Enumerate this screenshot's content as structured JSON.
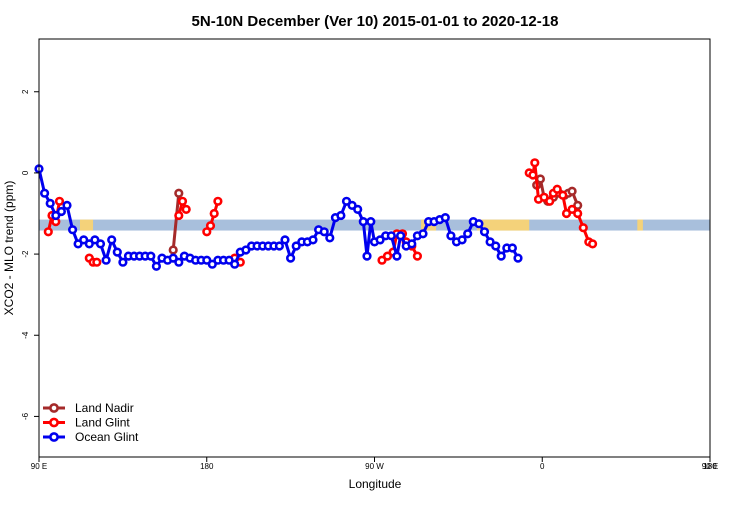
{
  "chart_data": {
    "type": "line",
    "title": "5N-10N December (Ver 10)   2015-01-01 to 2020-12-18",
    "xlabel": "Longitude",
    "ylabel": "XCO2 - MLO trend (ppm)",
    "xlim": [
      90,
      450
    ],
    "ylim": [
      -7,
      3.3
    ],
    "x_ticks": [
      {
        "value": 90,
        "label": "90 E"
      },
      {
        "value": 180,
        "label": "180"
      },
      {
        "value": 270,
        "label": "90 W"
      },
      {
        "value": 360,
        "label": "0"
      },
      {
        "value": 450,
        "label": "90 E"
      },
      {
        "value": 540,
        "label": "180"
      }
    ],
    "y_ticks": [
      {
        "value": 2,
        "label": "2"
      },
      {
        "value": 0,
        "label": "0"
      },
      {
        "value": -2,
        "label": "-2"
      },
      {
        "value": -4,
        "label": "-4"
      },
      {
        "value": -6,
        "label": "-6"
      }
    ],
    "band": {
      "ymin": -1.42,
      "ymax": -1.15,
      "color": "#a8bfdc",
      "land_color": "#f4d27a"
    },
    "land_segments": [
      [
        112,
        119
      ],
      [
        295,
        303
      ],
      [
        325,
        353
      ],
      [
        411,
        414
      ]
    ],
    "legend_position": "bottom-left",
    "series": [
      {
        "name": "Land Nadir",
        "color": "#a52a2a",
        "segments": [
          [
            [
              357,
              -0.3
            ],
            [
              359,
              -0.15
            ],
            [
              361,
              -0.6
            ],
            [
              363,
              -0.7
            ],
            [
              366,
              -0.6
            ],
            [
              369,
              -0.5
            ],
            [
              372,
              -0.55
            ],
            [
              374,
              -0.5
            ],
            [
              376,
              -0.45
            ],
            [
              379,
              -0.8
            ]
          ],
          [
            [
              162,
              -1.9
            ],
            [
              165,
              -0.5
            ]
          ]
        ]
      },
      {
        "name": "Land Glint",
        "color": "#ff0000",
        "segments": [
          [
            [
              95,
              -1.45
            ],
            [
              97,
              -1.05
            ],
            [
              99,
              -1.2
            ],
            [
              101,
              -0.7
            ]
          ],
          [
            [
              117,
              -2.1
            ],
            [
              119,
              -2.2
            ],
            [
              121,
              -2.2
            ]
          ],
          [
            [
              274,
              -2.15
            ],
            [
              277,
              -2.05
            ],
            [
              280,
              -1.95
            ],
            [
              282,
              -1.5
            ],
            [
              285,
              -1.5
            ],
            [
              287,
              -1.7
            ],
            [
              290,
              -1.8
            ],
            [
              293,
              -2.05
            ]
          ],
          [
            [
              353,
              0
            ],
            [
              355,
              -0.05
            ],
            [
              356,
              0.25
            ],
            [
              358,
              -0.65
            ],
            [
              361,
              -0.6
            ],
            [
              364,
              -0.7
            ],
            [
              366,
              -0.5
            ],
            [
              368,
              -0.4
            ],
            [
              371,
              -0.55
            ],
            [
              373,
              -1.0
            ],
            [
              376,
              -0.9
            ],
            [
              379,
              -1.0
            ],
            [
              382,
              -1.35
            ],
            [
              385,
              -1.7
            ],
            [
              387,
              -1.75
            ]
          ],
          [
            [
              165,
              -1.05
            ],
            [
              167,
              -0.7
            ],
            [
              169,
              -0.9
            ]
          ],
          [
            [
              180,
              -1.45
            ],
            [
              182,
              -1.3
            ],
            [
              184,
              -1.0
            ],
            [
              186,
              -0.7
            ]
          ],
          [
            [
              195,
              -2.1
            ],
            [
              198,
              -2.2
            ]
          ]
        ]
      },
      {
        "name": "Ocean Glint",
        "color": "#0000ee",
        "segments": [
          [
            [
              90,
              0.1
            ],
            [
              93,
              -0.5
            ],
            [
              96,
              -0.75
            ],
            [
              99,
              -1.05
            ],
            [
              102,
              -0.95
            ],
            [
              105,
              -0.8
            ],
            [
              108,
              -1.4
            ],
            [
              111,
              -1.75
            ],
            [
              114,
              -1.65
            ],
            [
              117,
              -1.75
            ],
            [
              120,
              -1.65
            ],
            [
              123,
              -1.75
            ],
            [
              126,
              -2.15
            ],
            [
              129,
              -1.65
            ],
            [
              132,
              -1.95
            ],
            [
              135,
              -2.2
            ],
            [
              138,
              -2.05
            ],
            [
              141,
              -2.05
            ],
            [
              144,
              -2.05
            ],
            [
              147,
              -2.05
            ],
            [
              150,
              -2.05
            ],
            [
              153,
              -2.3
            ],
            [
              156,
              -2.1
            ],
            [
              159,
              -2.15
            ],
            [
              162,
              -2.1
            ],
            [
              165,
              -2.2
            ],
            [
              168,
              -2.05
            ],
            [
              171,
              -2.1
            ],
            [
              174,
              -2.15
            ],
            [
              177,
              -2.15
            ],
            [
              180,
              -2.15
            ],
            [
              183,
              -2.25
            ],
            [
              186,
              -2.15
            ],
            [
              189,
              -2.15
            ],
            [
              192,
              -2.15
            ],
            [
              195,
              -2.25
            ],
            [
              198,
              -1.95
            ],
            [
              201,
              -1.9
            ],
            [
              204,
              -1.8
            ],
            [
              207,
              -1.8
            ],
            [
              210,
              -1.8
            ],
            [
              213,
              -1.8
            ],
            [
              216,
              -1.8
            ],
            [
              219,
              -1.8
            ],
            [
              222,
              -1.65
            ],
            [
              225,
              -2.1
            ],
            [
              228,
              -1.8
            ],
            [
              231,
              -1.7
            ],
            [
              234,
              -1.7
            ],
            [
              237,
              -1.65
            ],
            [
              240,
              -1.4
            ],
            [
              243,
              -1.45
            ],
            [
              246,
              -1.6
            ],
            [
              249,
              -1.1
            ],
            [
              252,
              -1.05
            ],
            [
              255,
              -0.7
            ],
            [
              258,
              -0.8
            ],
            [
              261,
              -0.9
            ],
            [
              264,
              -1.2
            ],
            [
              266,
              -2.05
            ],
            [
              268,
              -1.2
            ],
            [
              270,
              -1.7
            ],
            [
              273,
              -1.65
            ],
            [
              276,
              -1.55
            ],
            [
              279,
              -1.55
            ],
            [
              282,
              -2.05
            ],
            [
              284,
              -1.55
            ],
            [
              287,
              -1.8
            ],
            [
              290,
              -1.75
            ],
            [
              293,
              -1.55
            ],
            [
              296,
              -1.5
            ],
            [
              299,
              -1.2
            ],
            [
              302,
              -1.2
            ],
            [
              305,
              -1.15
            ],
            [
              308,
              -1.1
            ],
            [
              311,
              -1.55
            ],
            [
              314,
              -1.7
            ],
            [
              317,
              -1.65
            ],
            [
              320,
              -1.5
            ],
            [
              323,
              -1.2
            ],
            [
              326,
              -1.25
            ],
            [
              329,
              -1.45
            ],
            [
              332,
              -1.7
            ],
            [
              335,
              -1.8
            ],
            [
              338,
              -2.05
            ],
            [
              341,
              -1.85
            ],
            [
              344,
              -1.85
            ],
            [
              347,
              -2.1
            ]
          ]
        ]
      }
    ]
  },
  "legend": {
    "items": [
      "Land Nadir",
      "Land Glint",
      "Ocean Glint"
    ]
  }
}
